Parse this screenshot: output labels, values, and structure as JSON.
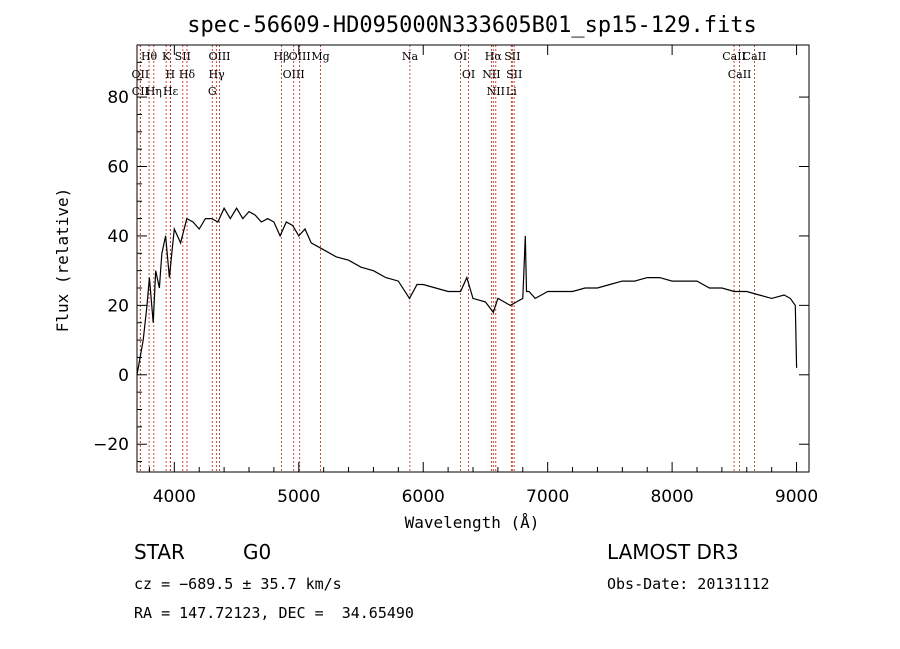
{
  "chart_data": {
    "type": "line",
    "title": "spec-56609-HD095000N333605B01_sp15-129.fits",
    "xlabel": "Wavelength (Å)",
    "ylabel": "Flux (relative)",
    "xlim": [
      3700,
      9100
    ],
    "ylim": [
      -28,
      95
    ],
    "xticks": [
      4000,
      5000,
      6000,
      7000,
      8000,
      9000
    ],
    "yticks": [
      -20,
      0,
      20,
      40,
      60,
      80
    ],
    "spectrum_color": "#000000",
    "line_marker_color": "#c0392b",
    "x": [
      3700,
      3750,
      3780,
      3800,
      3830,
      3850,
      3880,
      3890,
      3900,
      3930,
      3960,
      3980,
      4000,
      4050,
      4100,
      4150,
      4200,
      4250,
      4300,
      4350,
      4400,
      4450,
      4500,
      4550,
      4600,
      4650,
      4700,
      4750,
      4800,
      4850,
      4900,
      4950,
      5000,
      5050,
      5100,
      5150,
      5200,
      5300,
      5400,
      5500,
      5600,
      5700,
      5800,
      5890,
      5950,
      6000,
      6100,
      6200,
      6300,
      6350,
      6400,
      6500,
      6563,
      6600,
      6650,
      6700,
      6750,
      6800,
      6820,
      6830,
      6850,
      6900,
      6950,
      7000,
      7100,
      7200,
      7300,
      7400,
      7500,
      7600,
      7700,
      7800,
      7900,
      8000,
      8100,
      8200,
      8300,
      8400,
      8500,
      8600,
      8700,
      8800,
      8900,
      8950,
      8990,
      9000
    ],
    "y": [
      0,
      10,
      20,
      28,
      15,
      30,
      25,
      30,
      35,
      40,
      28,
      35,
      42,
      38,
      45,
      44,
      42,
      45,
      45,
      44,
      48,
      45,
      48,
      45,
      47,
      46,
      44,
      45,
      44,
      40,
      44,
      43,
      40,
      42,
      38,
      37,
      36,
      34,
      33,
      31,
      30,
      28,
      27,
      22,
      26,
      26,
      25,
      24,
      24,
      28,
      22,
      21,
      18,
      22,
      21,
      20,
      21,
      22,
      40,
      24,
      24,
      22,
      23,
      24,
      24,
      24,
      25,
      25,
      26,
      27,
      27,
      28,
      28,
      27,
      27,
      27,
      25,
      25,
      24,
      24,
      23,
      22,
      23,
      22,
      20,
      2
    ],
    "spectral_lines": [
      {
        "name": "Hθ",
        "wavelength": 3797
      },
      {
        "name": "OII",
        "wavelength": 3727
      },
      {
        "name": "CII",
        "wavelength": 3727
      },
      {
        "name": "Hη",
        "wavelength": 3835
      },
      {
        "name": "K",
        "wavelength": 3934
      },
      {
        "name": "H",
        "wavelength": 3968
      },
      {
        "name": "Hε",
        "wavelength": 3970
      },
      {
        "name": "SII",
        "wavelength": 4068
      },
      {
        "name": "Hδ",
        "wavelength": 4102
      },
      {
        "name": "OIII",
        "wavelength": 4363
      },
      {
        "name": "Hγ",
        "wavelength": 4340
      },
      {
        "name": "G",
        "wavelength": 4305
      },
      {
        "name": "Hβ",
        "wavelength": 4861
      },
      {
        "name": "OIII",
        "wavelength": 4959
      },
      {
        "name": "OIII",
        "wavelength": 5007
      },
      {
        "name": "Mg",
        "wavelength": 5175
      },
      {
        "name": "Na",
        "wavelength": 5893
      },
      {
        "name": "OI",
        "wavelength": 6300
      },
      {
        "name": "OI",
        "wavelength": 6364
      },
      {
        "name": "Hα",
        "wavelength": 6563
      },
      {
        "name": "NII",
        "wavelength": 6548
      },
      {
        "name": "NII",
        "wavelength": 6583
      },
      {
        "name": "SII",
        "wavelength": 6716
      },
      {
        "name": "SII",
        "wavelength": 6731
      },
      {
        "name": "Li",
        "wavelength": 6708
      },
      {
        "name": "CaII",
        "wavelength": 8498
      },
      {
        "name": "CaII",
        "wavelength": 8542
      },
      {
        "name": "CaII",
        "wavelength": 8662
      }
    ]
  },
  "info": {
    "class": "STAR",
    "subclass": "G0",
    "survey": "LAMOST DR3",
    "cz": "cz = −689.5 ± 35.7 km/s",
    "obs_date": "Obs-Date: 20131112",
    "radec": "RA = 147.72123, DEC =  34.65490"
  }
}
